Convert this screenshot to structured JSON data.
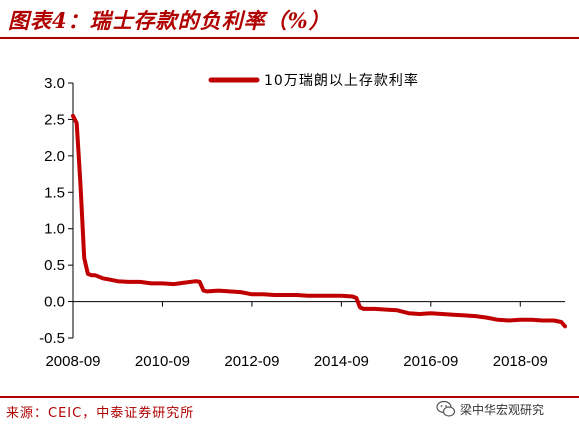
{
  "header": {
    "title": "图表4：瑞士存款的负利率（%）"
  },
  "footer": {
    "source": "来源：CEIC，中泰证券研究所",
    "watermark_text": "梁中华宏观研究",
    "watermark_icon": "wechat-icon"
  },
  "chart_data": {
    "type": "line",
    "title": "",
    "xlabel": "",
    "ylabel": "",
    "ylim": [
      -0.5,
      3.0
    ],
    "yticks": [
      "3.0",
      "2.5",
      "2.0",
      "1.5",
      "1.0",
      "0.5",
      "0.0",
      "-0.5"
    ],
    "xticks": [
      "2008-09",
      "2010-09",
      "2012-09",
      "2014-09",
      "2016-09",
      "2018-09"
    ],
    "x_range": [
      "2008-09",
      "2019-09"
    ],
    "legend_position": "top-right",
    "grid": false,
    "series": [
      {
        "name": "10万瑞朗以上存款利率",
        "color": "#c00000",
        "x": [
          "2008-09",
          "2008-10",
          "2008-11",
          "2008-12",
          "2009-01",
          "2009-02",
          "2009-03",
          "2009-05",
          "2009-07",
          "2009-09",
          "2009-12",
          "2010-03",
          "2010-06",
          "2010-09",
          "2010-12",
          "2011-03",
          "2011-06",
          "2011-07",
          "2011-08",
          "2011-09",
          "2011-12",
          "2012-03",
          "2012-06",
          "2012-09",
          "2012-12",
          "2013-03",
          "2013-06",
          "2013-09",
          "2013-12",
          "2014-03",
          "2014-06",
          "2014-09",
          "2014-12",
          "2015-01",
          "2015-02",
          "2015-03",
          "2015-06",
          "2015-09",
          "2015-12",
          "2016-03",
          "2016-06",
          "2016-09",
          "2016-12",
          "2017-03",
          "2017-06",
          "2017-09",
          "2017-12",
          "2018-03",
          "2018-06",
          "2018-09",
          "2018-12",
          "2019-03",
          "2019-06",
          "2019-08",
          "2019-09"
        ],
        "values": [
          2.55,
          2.45,
          1.6,
          0.6,
          0.38,
          0.36,
          0.36,
          0.32,
          0.3,
          0.28,
          0.27,
          0.27,
          0.25,
          0.25,
          0.24,
          0.26,
          0.28,
          0.27,
          0.15,
          0.14,
          0.15,
          0.14,
          0.13,
          0.1,
          0.1,
          0.09,
          0.09,
          0.09,
          0.08,
          0.08,
          0.08,
          0.08,
          0.07,
          0.05,
          -0.08,
          -0.1,
          -0.1,
          -0.11,
          -0.12,
          -0.16,
          -0.17,
          -0.16,
          -0.17,
          -0.18,
          -0.19,
          -0.2,
          -0.22,
          -0.25,
          -0.26,
          -0.25,
          -0.25,
          -0.26,
          -0.26,
          -0.28,
          -0.34
        ]
      }
    ]
  }
}
